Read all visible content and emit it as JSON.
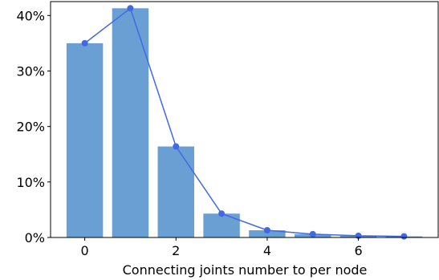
{
  "chart_data": {
    "type": "bar",
    "title": "",
    "xlabel": "Connecting joints number to per node",
    "ylabel": "",
    "x": [
      0,
      1,
      2,
      3,
      4,
      5,
      6,
      7
    ],
    "bar_values": [
      35.0,
      41.3,
      16.4,
      4.3,
      1.3,
      0.6,
      0.3,
      0.2
    ],
    "line_values": [
      35.0,
      41.3,
      16.4,
      4.3,
      1.3,
      0.6,
      0.3,
      0.2
    ],
    "xlim": [
      -0.75,
      7.75
    ],
    "ylim": [
      0,
      42.5
    ],
    "x_ticks": [
      0,
      2,
      4,
      6
    ],
    "x_tick_labels": [
      "0",
      "2",
      "4",
      "6"
    ],
    "y_ticks": [
      0,
      10,
      20,
      30,
      40
    ],
    "y_tick_labels": [
      "0%",
      "10%",
      "20%",
      "30%",
      "40%"
    ],
    "grid": false,
    "legend": "none",
    "colors": {
      "bar": "#6a9fd4",
      "line": "#4169e1"
    }
  }
}
